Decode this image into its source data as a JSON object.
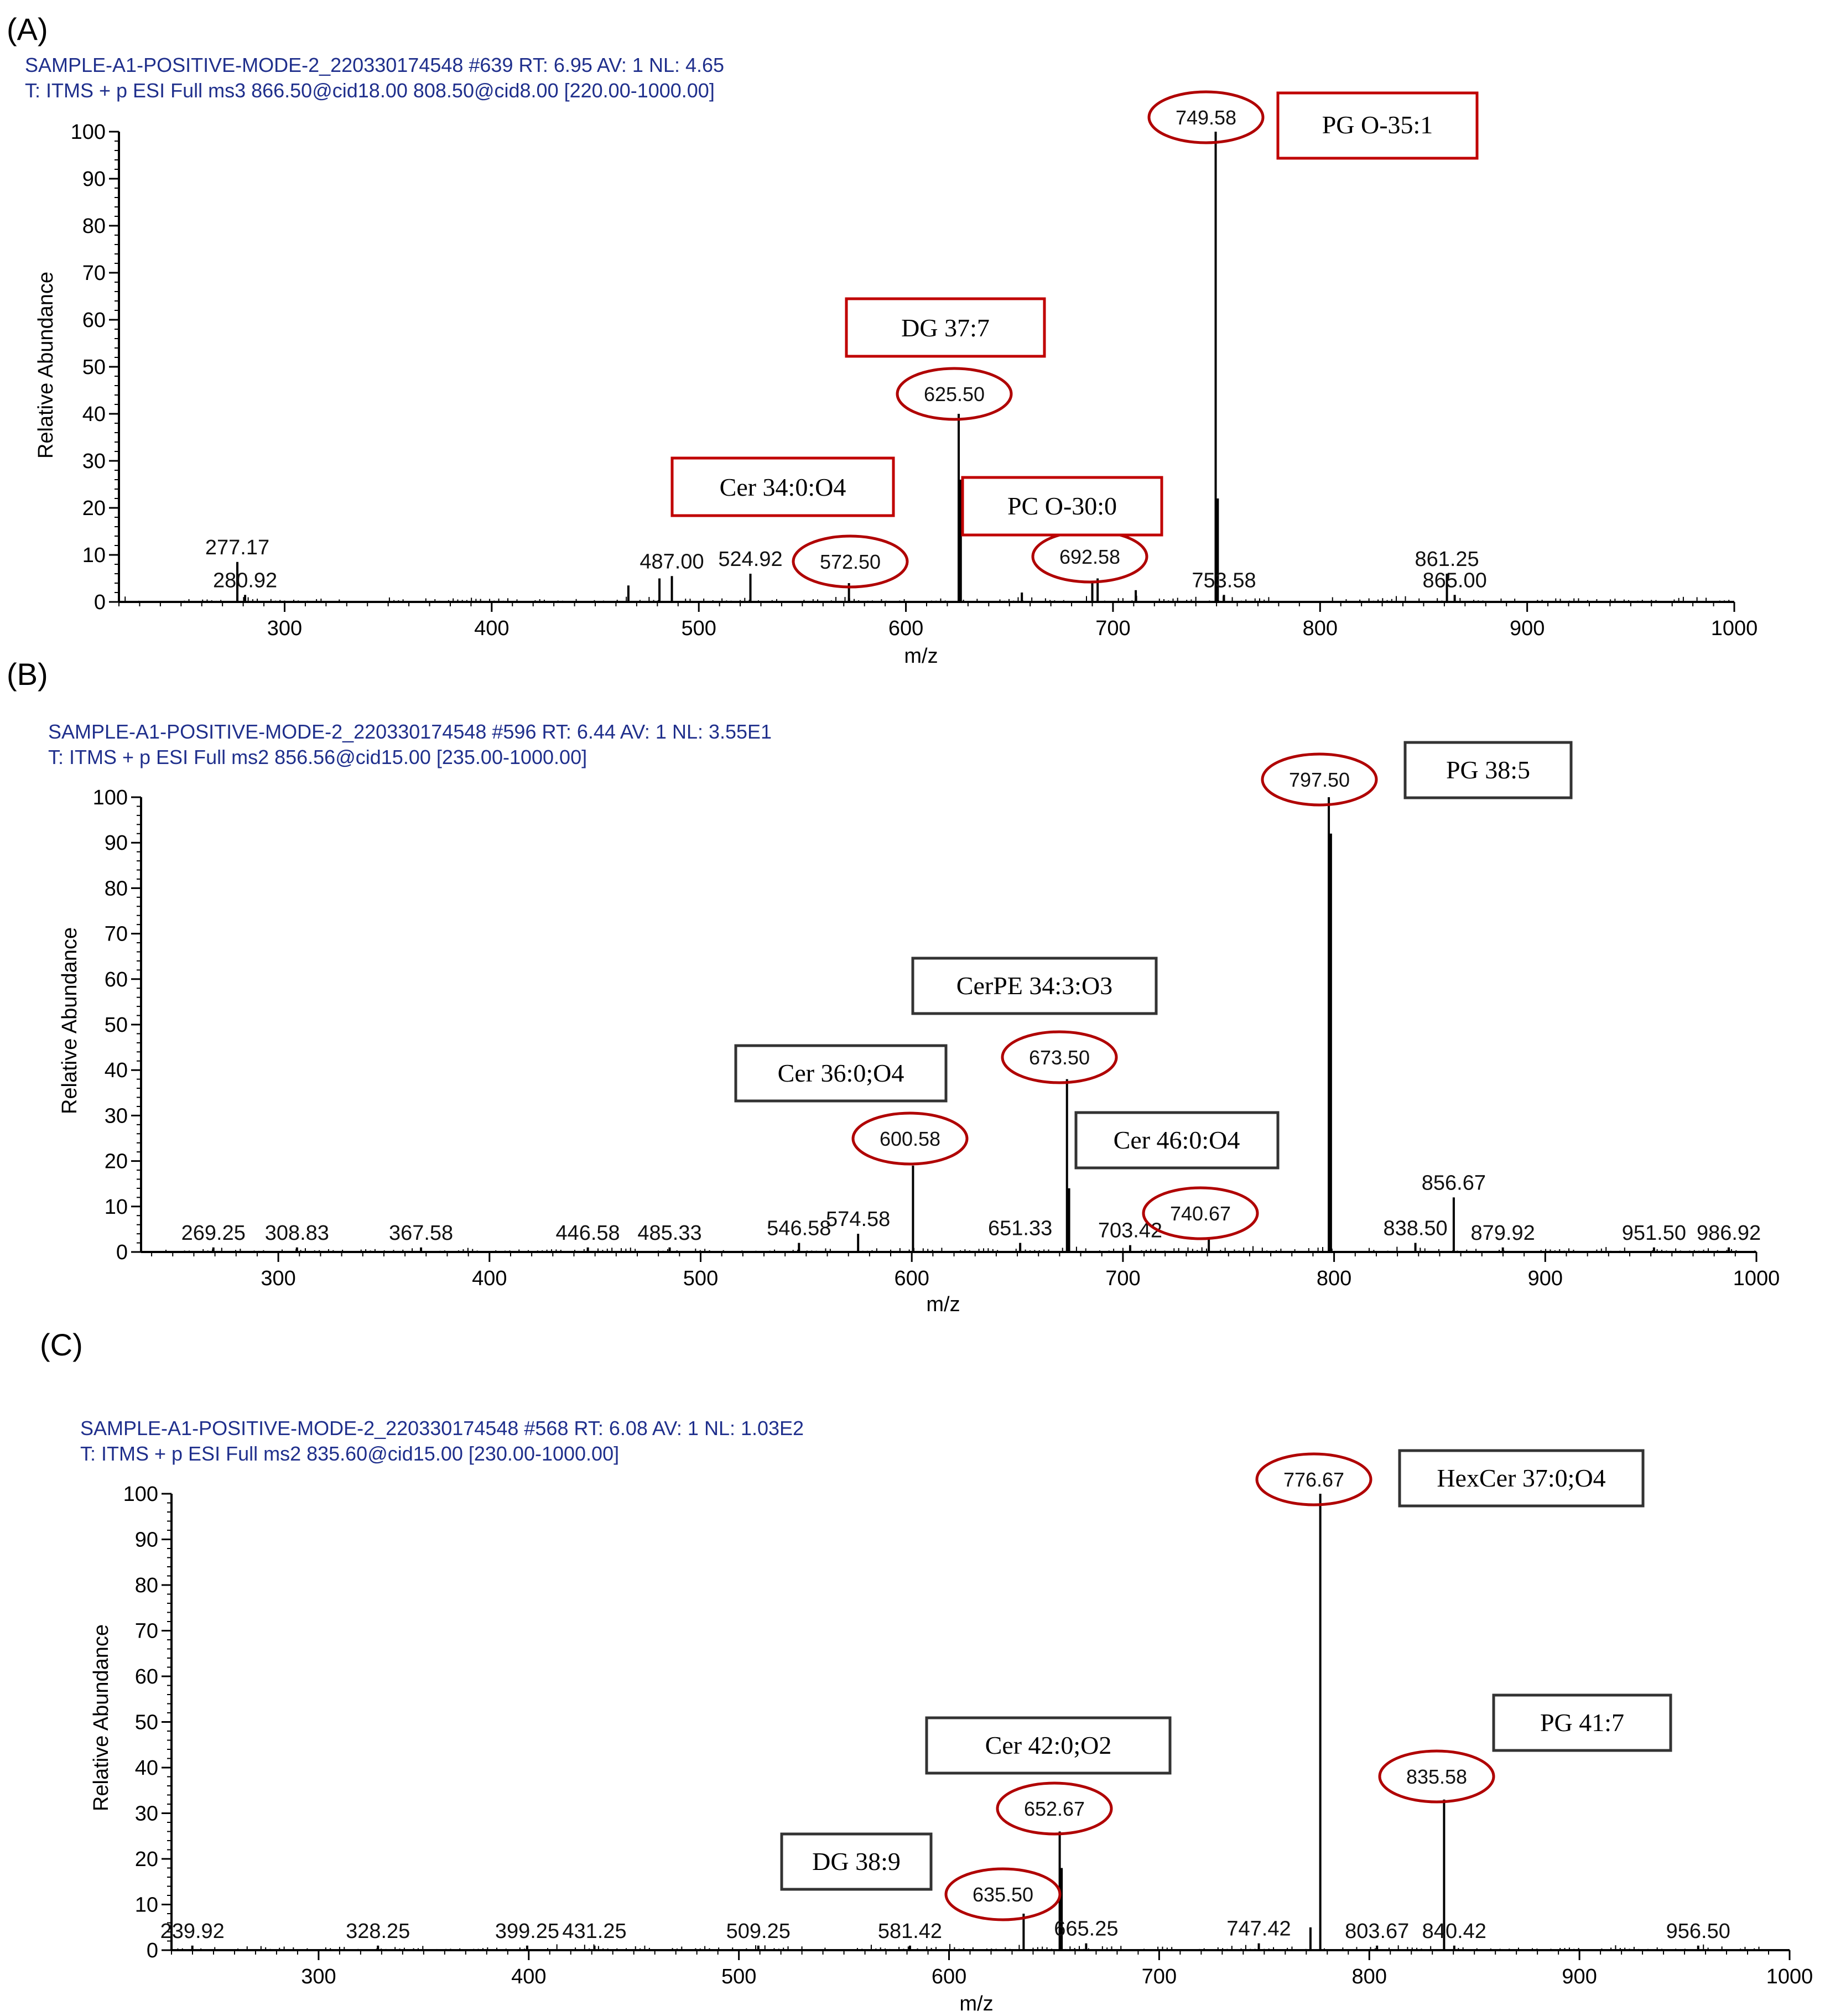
{
  "chart_data": [
    {
      "type": "bar",
      "panel": "(A)",
      "header_line1": "SAMPLE-A1-POSITIVE-MODE-2_220330174548 #639   RT: 6.95   AV: 1   NL: 4.65",
      "header_line2": "T: ITMS + p ESI Full ms3 866.50@cid18.00 808.50@cid8.00 [220.00-1000.00]",
      "xlabel": "m/z",
      "ylabel": "Relative Abundance",
      "xlim": [
        220,
        1000
      ],
      "ylim": [
        0,
        100
      ],
      "xticks": [
        300,
        400,
        500,
        600,
        700,
        800,
        900,
        1000
      ],
      "yticks": [
        0,
        10,
        20,
        30,
        40,
        50,
        60,
        70,
        80,
        90,
        100
      ],
      "peaks": [
        {
          "mz": 277.17,
          "rel": 8.5,
          "label": "277.17"
        },
        {
          "mz": 280.92,
          "rel": 1.5,
          "label": "280.92"
        },
        {
          "mz": 466.0,
          "rel": 3.5
        },
        {
          "mz": 481.0,
          "rel": 5.0
        },
        {
          "mz": 487.0,
          "rel": 5.5,
          "label": "487.00"
        },
        {
          "mz": 524.92,
          "rel": 6.0,
          "label": "524.92"
        },
        {
          "mz": 572.5,
          "rel": 4.0,
          "label": "572.50"
        },
        {
          "mz": 625.5,
          "rel": 40.0,
          "label": "625.50"
        },
        {
          "mz": 626.5,
          "rel": 26.0
        },
        {
          "mz": 656.0,
          "rel": 2.0
        },
        {
          "mz": 690.0,
          "rel": 4.0
        },
        {
          "mz": 692.58,
          "rel": 5.0,
          "label": "692.58"
        },
        {
          "mz": 711.0,
          "rel": 2.5
        },
        {
          "mz": 749.58,
          "rel": 100.0,
          "label": "749.58"
        },
        {
          "mz": 750.6,
          "rel": 22.0
        },
        {
          "mz": 753.58,
          "rel": 1.5,
          "label": "753.58"
        },
        {
          "mz": 861.25,
          "rel": 6.0,
          "label": "861.25"
        },
        {
          "mz": 865.0,
          "rel": 1.5,
          "label": "865.00"
        }
      ],
      "circled": [
        "749.58",
        "625.50",
        "572.50",
        "692.58"
      ],
      "annotations": [
        "PG O-35:1",
        "DG 37:7",
        "Cer 34:0:O4",
        "PC O-30:0"
      ]
    },
    {
      "type": "bar",
      "panel": "(B)",
      "header_line1": "SAMPLE-A1-POSITIVE-MODE-2_220330174548 #596   RT: 6.44   AV: 1   NL: 3.55E1",
      "header_line2": "T: ITMS + p ESI Full ms2 856.56@cid15.00 [235.00-1000.00]",
      "xlabel": "m/z",
      "ylabel": "Relative Abundance",
      "xlim": [
        235,
        1000
      ],
      "ylim": [
        0,
        100
      ],
      "xticks": [
        300,
        400,
        500,
        600,
        700,
        800,
        900,
        1000
      ],
      "yticks": [
        0,
        10,
        20,
        30,
        40,
        50,
        60,
        70,
        80,
        90,
        100
      ],
      "peaks": [
        {
          "mz": 269.25,
          "rel": 1.0,
          "label": "269.25"
        },
        {
          "mz": 308.83,
          "rel": 1.0,
          "label": "308.83"
        },
        {
          "mz": 367.58,
          "rel": 1.0,
          "label": "367.58"
        },
        {
          "mz": 446.58,
          "rel": 1.0,
          "label": "446.58"
        },
        {
          "mz": 485.33,
          "rel": 1.0,
          "label": "485.33"
        },
        {
          "mz": 546.58,
          "rel": 2.0,
          "label": "546.58"
        },
        {
          "mz": 574.58,
          "rel": 4.0,
          "label": "574.58"
        },
        {
          "mz": 600.58,
          "rel": 19.0,
          "label": "600.58"
        },
        {
          "mz": 651.33,
          "rel": 2.0,
          "label": "651.33"
        },
        {
          "mz": 673.5,
          "rel": 38.0,
          "label": "673.50"
        },
        {
          "mz": 674.5,
          "rel": 14.0
        },
        {
          "mz": 703.42,
          "rel": 1.5,
          "label": "703.42"
        },
        {
          "mz": 740.67,
          "rel": 3.0,
          "label": "740.67"
        },
        {
          "mz": 797.5,
          "rel": 100.0,
          "label": "797.50"
        },
        {
          "mz": 798.5,
          "rel": 92.0
        },
        {
          "mz": 838.5,
          "rel": 2.0,
          "label": "838.50"
        },
        {
          "mz": 856.67,
          "rel": 12.0,
          "label": "856.67"
        },
        {
          "mz": 879.92,
          "rel": 1.0,
          "label": "879.92"
        },
        {
          "mz": 951.5,
          "rel": 1.0,
          "label": "951.50"
        },
        {
          "mz": 986.92,
          "rel": 1.0,
          "label": "986.92"
        }
      ],
      "circled": [
        "797.50",
        "673.50",
        "600.58",
        "740.67"
      ],
      "annotations": [
        "PG 38:5",
        "CerPE 34:3:O3",
        "Cer 36:0;O4",
        "Cer 46:0:O4"
      ]
    },
    {
      "type": "bar",
      "panel": "(C)",
      "header_line1": "SAMPLE-A1-POSITIVE-MODE-2_220330174548 #568   RT: 6.08   AV: 1   NL: 1.03E2",
      "header_line2": "T: ITMS + p ESI Full ms2 835.60@cid15.00 [230.00-1000.00]",
      "xlabel": "m/z",
      "ylabel": "Relative Abundance",
      "xlim": [
        230,
        1000
      ],
      "ylim": [
        0,
        100
      ],
      "xticks": [
        300,
        400,
        500,
        600,
        700,
        800,
        900,
        1000
      ],
      "yticks": [
        0,
        10,
        20,
        30,
        40,
        50,
        60,
        70,
        80,
        90,
        100
      ],
      "peaks": [
        {
          "mz": 239.92,
          "rel": 1.0,
          "label": "239.92"
        },
        {
          "mz": 328.25,
          "rel": 1.0,
          "label": "328.25"
        },
        {
          "mz": 399.25,
          "rel": 1.0,
          "label": "399.25"
        },
        {
          "mz": 431.25,
          "rel": 1.0,
          "label": "431.25"
        },
        {
          "mz": 509.25,
          "rel": 1.0,
          "label": "509.25"
        },
        {
          "mz": 581.42,
          "rel": 1.0,
          "label": "581.42"
        },
        {
          "mz": 635.5,
          "rel": 8.0,
          "label": "635.50"
        },
        {
          "mz": 652.67,
          "rel": 26.0,
          "label": "652.67"
        },
        {
          "mz": 653.6,
          "rel": 18.0
        },
        {
          "mz": 665.25,
          "rel": 1.5,
          "label": "665.25"
        },
        {
          "mz": 747.42,
          "rel": 1.5,
          "label": "747.42"
        },
        {
          "mz": 772.0,
          "rel": 5.0
        },
        {
          "mz": 776.67,
          "rel": 100.0,
          "label": "776.67"
        },
        {
          "mz": 803.67,
          "rel": 1.0,
          "label": "803.67"
        },
        {
          "mz": 835.58,
          "rel": 33.0,
          "label": "835.58"
        },
        {
          "mz": 840.42,
          "rel": 1.0,
          "label": "840.42"
        },
        {
          "mz": 956.5,
          "rel": 1.0,
          "label": "956.50"
        }
      ],
      "circled": [
        "776.67",
        "835.58",
        "652.67",
        "635.50"
      ],
      "annotations": [
        "HexCer 37:0;O4",
        "PG 41:7",
        "Cer 42:0;O2",
        "DG 38:9"
      ]
    }
  ]
}
